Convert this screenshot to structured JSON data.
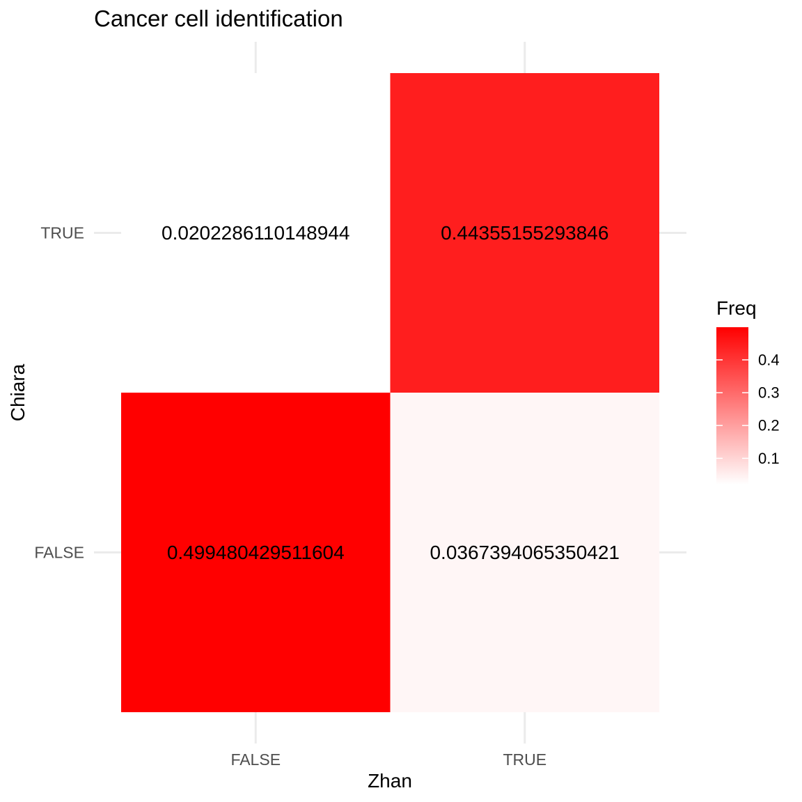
{
  "chart_data": {
    "type": "heatmap",
    "title": "Cancer cell identification",
    "xlabel": "Zhan",
    "ylabel": "Chiara",
    "x_categories": [
      "FALSE",
      "TRUE"
    ],
    "y_categories": [
      "FALSE",
      "TRUE"
    ],
    "cells": [
      {
        "x": "FALSE",
        "y": "TRUE",
        "value": 0.0202286110148944,
        "label": "0.0202286110148944"
      },
      {
        "x": "TRUE",
        "y": "TRUE",
        "value": 0.44355155293846,
        "label": "0.44355155293846"
      },
      {
        "x": "FALSE",
        "y": "FALSE",
        "value": 0.499480429511604,
        "label": "0.499480429511604"
      },
      {
        "x": "TRUE",
        "y": "FALSE",
        "value": 0.0367394065350421,
        "label": "0.0367394065350421"
      }
    ],
    "legend": {
      "title": "Freq",
      "position": "right",
      "ticks": [
        0.1,
        0.2,
        0.3,
        0.4
      ],
      "tick_labels": [
        "0.1",
        "0.2",
        "0.3",
        "0.4"
      ],
      "low_color": "#ffffff",
      "high_color": "#ff0000"
    },
    "grid": true
  }
}
